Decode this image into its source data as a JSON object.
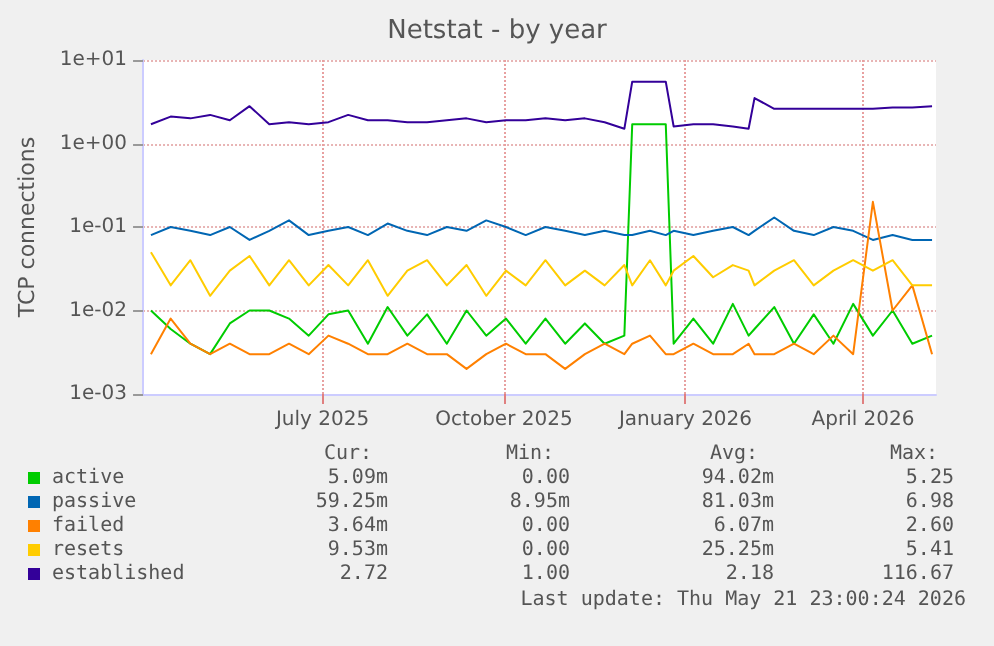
{
  "chart_data": {
    "type": "line",
    "title": "Netstat - by year",
    "ylabel": "TCP connections",
    "log": "y",
    "grid": true,
    "legend": "bottom",
    "marker": "none",
    "line_style": "solid",
    "xlim": [
      "2025-04-01",
      "2026-05-08"
    ],
    "xticks": [
      {
        "value": "2025-07-01",
        "label": "July 2025"
      },
      {
        "value": "2025-10-01",
        "label": "October 2025"
      },
      {
        "value": "2026-01-01",
        "label": "January 2026"
      },
      {
        "value": "2026-04-01",
        "label": "April 2026"
      }
    ],
    "ylim": [
      0.001,
      10
    ],
    "yticks": [
      {
        "value": 0.001,
        "label": "1e-03"
      },
      {
        "value": 0.01,
        "label": "1e-02"
      },
      {
        "value": 0.1,
        "label": "1e-01"
      },
      {
        "value": 1,
        "label": "1e+00"
      },
      {
        "value": 10,
        "label": "1e+01"
      }
    ],
    "x": [
      "2025-04-05",
      "2025-04-15",
      "2025-04-25",
      "2025-05-05",
      "2025-05-15",
      "2025-05-25",
      "2025-06-04",
      "2025-06-14",
      "2025-06-24",
      "2025-07-04",
      "2025-07-14",
      "2025-07-24",
      "2025-08-03",
      "2025-08-13",
      "2025-08-23",
      "2025-09-02",
      "2025-09-12",
      "2025-09-22",
      "2025-10-02",
      "2025-10-12",
      "2025-10-22",
      "2025-11-01",
      "2025-11-11",
      "2025-11-21",
      "2025-12-01",
      "2025-12-05",
      "2025-12-14",
      "2025-12-22",
      "2025-12-26",
      "2026-01-05",
      "2026-01-15",
      "2026-01-25",
      "2026-02-02",
      "2026-02-05",
      "2026-02-15",
      "2026-02-25",
      "2026-03-07",
      "2026-03-17",
      "2026-03-27",
      "2026-04-06",
      "2026-04-16",
      "2026-04-26",
      "2026-05-06"
    ],
    "series": [
      {
        "name": "active",
        "color": "#00cc00",
        "values": [
          0.01,
          0.006,
          0.004,
          0.003,
          0.007,
          0.01,
          0.01,
          0.008,
          0.005,
          0.009,
          0.01,
          0.004,
          0.011,
          0.005,
          0.009,
          0.004,
          0.01,
          0.005,
          0.008,
          0.004,
          0.008,
          0.004,
          0.007,
          0.004,
          0.005,
          1.7,
          1.7,
          1.7,
          0.004,
          0.008,
          0.004,
          0.012,
          0.005,
          0.006,
          0.011,
          0.004,
          0.009,
          0.004,
          0.012,
          0.005,
          0.01,
          0.004,
          0.005
        ]
      },
      {
        "name": "passive",
        "color": "#0066b3",
        "values": [
          0.08,
          0.1,
          0.09,
          0.08,
          0.1,
          0.07,
          0.09,
          0.12,
          0.08,
          0.09,
          0.1,
          0.08,
          0.11,
          0.09,
          0.08,
          0.1,
          0.09,
          0.12,
          0.1,
          0.08,
          0.1,
          0.09,
          0.08,
          0.09,
          0.08,
          0.08,
          0.09,
          0.08,
          0.09,
          0.08,
          0.09,
          0.1,
          0.08,
          0.09,
          0.13,
          0.09,
          0.08,
          0.1,
          0.09,
          0.07,
          0.08,
          0.07,
          0.07
        ]
      },
      {
        "name": "failed",
        "color": "#ff8000",
        "values": [
          0.003,
          0.008,
          0.004,
          0.003,
          0.004,
          0.003,
          0.003,
          0.004,
          0.003,
          0.005,
          0.004,
          0.003,
          0.003,
          0.004,
          0.003,
          0.003,
          0.002,
          0.003,
          0.004,
          0.003,
          0.003,
          0.002,
          0.003,
          0.004,
          0.003,
          0.004,
          0.005,
          0.003,
          0.003,
          0.004,
          0.003,
          0.003,
          0.004,
          0.003,
          0.003,
          0.004,
          0.003,
          0.005,
          0.003,
          0.2,
          0.01,
          0.02,
          0.003
        ]
      },
      {
        "name": "resets",
        "color": "#ffcc00",
        "values": [
          0.05,
          0.02,
          0.04,
          0.015,
          0.03,
          0.045,
          0.02,
          0.04,
          0.02,
          0.035,
          0.02,
          0.04,
          0.015,
          0.03,
          0.04,
          0.02,
          0.035,
          0.015,
          0.03,
          0.02,
          0.04,
          0.02,
          0.03,
          0.02,
          0.035,
          0.02,
          0.04,
          0.02,
          0.03,
          0.045,
          0.025,
          0.035,
          0.03,
          0.02,
          0.03,
          0.04,
          0.02,
          0.03,
          0.04,
          0.03,
          0.04,
          0.02,
          0.02
        ]
      },
      {
        "name": "established",
        "color": "#330099",
        "values": [
          1.7,
          2.1,
          2.0,
          2.2,
          1.9,
          2.8,
          1.7,
          1.8,
          1.7,
          1.8,
          2.2,
          1.9,
          1.9,
          1.8,
          1.8,
          1.9,
          2.0,
          1.8,
          1.9,
          1.9,
          2.0,
          1.9,
          2.0,
          1.8,
          1.5,
          5.5,
          5.5,
          5.5,
          1.6,
          1.7,
          1.7,
          1.6,
          1.5,
          3.5,
          2.6,
          2.6,
          2.6,
          2.6,
          2.6,
          2.6,
          2.7,
          2.7,
          2.8
        ]
      }
    ],
    "annotations": [
      "Cur:",
      "Min:",
      "Avg:",
      "Max:",
      "5.09m",
      "0.00",
      "94.02m",
      "5.25",
      "59.25m",
      "8.95m",
      "81.03m",
      "6.98",
      "3.64m",
      "0.00",
      "6.07m",
      "2.60",
      "9.53m",
      "0.00",
      "25.25m",
      "5.41",
      "2.72",
      "1.00",
      "2.18",
      "116.67",
      "Last update: Thu May 21 23:00:24 2026"
    ]
  }
}
